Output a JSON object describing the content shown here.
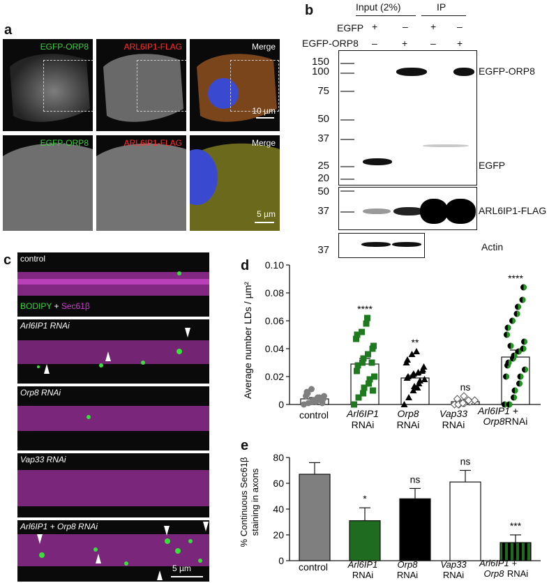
{
  "panel_a": {
    "letter": "a",
    "top_labels": [
      "EGFP-ORP8",
      "ARL6IP1-FLAG",
      "Merge"
    ],
    "bottom_labels": [
      "EGFP-ORP8",
      "ARL6IP1-FLAG",
      "Merge"
    ],
    "scale_top": "10 µm",
    "scale_bottom": "5 µm"
  },
  "panel_b": {
    "letter": "b",
    "input_header": "Input (2%)",
    "ip_header": "IP",
    "row1_label": "EGFP",
    "row2_label": "EGFP-ORP8",
    "row1_signs": [
      "+",
      "–",
      "+",
      "–"
    ],
    "row2_signs": [
      "–",
      "+",
      "–",
      "+"
    ],
    "mw_top": [
      "150",
      "100",
      "75",
      "50",
      "37",
      "25",
      "20"
    ],
    "mw_mid": [
      "50",
      "37"
    ],
    "mw_bottom": [
      "37"
    ],
    "labels": {
      "egfp_orp8": "EGFP-ORP8",
      "egfp": "EGFP",
      "arl6ip1": "ARL6IP1-FLAG",
      "actin": "Actin"
    }
  },
  "panel_c": {
    "letter": "c",
    "legend_green": "BODIPY",
    "legend_plus": " + ",
    "legend_magenta": "Sec61β",
    "rows": [
      "control",
      "Arl6IP1 RNAi",
      "Orp8 RNAi",
      "Vap33 RNAi",
      "Arl6IP1 + Orp8 RNAi"
    ],
    "scale": "5 µm"
  },
  "chart_data": [
    {
      "panel": "d",
      "type": "bar",
      "ylabel": "Average number LDs / µm²",
      "ylim": [
        0,
        0.1
      ],
      "yticks": [
        "0",
        "0.02",
        "0.04",
        "0.06",
        "0.08",
        "0.10"
      ],
      "categories": [
        "control",
        "Arl6IP1 RNAi",
        "Orp8 RNAi",
        "Vap33 RNAi",
        "Arl6IP1 + Orp8 RNAi"
      ],
      "values": [
        0.004,
        0.029,
        0.019,
        0.002,
        0.034
      ],
      "errors": [
        0.001,
        0.004,
        0.002,
        0.001,
        0.005
      ],
      "significance": [
        "",
        "****",
        "**",
        "ns",
        "****"
      ],
      "points": [
        [
          0.0,
          0.001,
          0.002,
          0.003,
          0.004,
          0.005,
          0.006,
          0.007,
          0.008,
          0.002,
          0.003,
          0.005,
          0.001,
          0.004,
          0.006,
          0.009,
          0.011,
          0.002,
          0.003,
          0.004
        ],
        [
          0.0,
          0.005,
          0.008,
          0.012,
          0.015,
          0.018,
          0.02,
          0.024,
          0.028,
          0.03,
          0.033,
          0.036,
          0.04,
          0.042,
          0.047,
          0.05,
          0.052,
          0.058,
          0.062,
          0.03,
          0.01
        ],
        [
          0.0,
          0.005,
          0.01,
          0.013,
          0.015,
          0.017,
          0.018,
          0.019,
          0.02,
          0.021,
          0.022,
          0.023,
          0.025,
          0.027,
          0.03,
          0.032,
          0.036,
          0.038,
          0.012,
          0.024
        ],
        [
          0.0,
          0.0,
          0.001,
          0.001,
          0.002,
          0.002,
          0.003,
          0.004,
          0.0,
          0.001,
          0.006,
          0.003
        ],
        [
          0.0,
          0.0,
          0.005,
          0.01,
          0.015,
          0.02,
          0.025,
          0.028,
          0.03,
          0.033,
          0.035,
          0.038,
          0.04,
          0.045,
          0.05,
          0.055,
          0.06,
          0.065,
          0.07,
          0.075,
          0.084,
          0.02,
          0.042
        ]
      ]
    },
    {
      "panel": "e",
      "type": "bar",
      "ylabel": "% Continuous Sec61β staining in axons",
      "ylim": [
        0,
        80
      ],
      "yticks": [
        "0",
        "20",
        "40",
        "60",
        "80"
      ],
      "categories": [
        "control",
        "Arl6IP1 RNAi",
        "Orp8 RNAi",
        "Vap33 RNAi",
        "Arl6IP1 + Orp8 RNAi"
      ],
      "values": [
        67,
        31,
        48,
        61,
        14
      ],
      "errors": [
        9,
        10,
        8,
        9,
        6
      ],
      "significance": [
        "",
        "*",
        "ns",
        "ns",
        "***"
      ]
    }
  ],
  "axis_text": {
    "d_letter": "d",
    "e_letter": "e",
    "d_ylabel": "Average number LDs / µm²",
    "e_ylabel_1": "% Continuous Sec61β",
    "e_ylabel_2": "staining in axons",
    "cat_control": "control",
    "cat1_a": "Arl6IP1",
    "cat1_b": "RNAi",
    "cat2_a": "Orp8",
    "cat2_b": "RNAi",
    "cat3_a": "Vap33",
    "cat3_b": "RNAi",
    "cat4_a": "Arl6IP1 +",
    "cat4_b": "Orp8",
    "cat4_c": "RNAi"
  },
  "colors": {
    "control": "#7f7f7f",
    "arl6ip1": "#1f6b1f",
    "orp8": "#000000",
    "vap33": "#ffffff",
    "combo_green": "#1f6b1f"
  }
}
